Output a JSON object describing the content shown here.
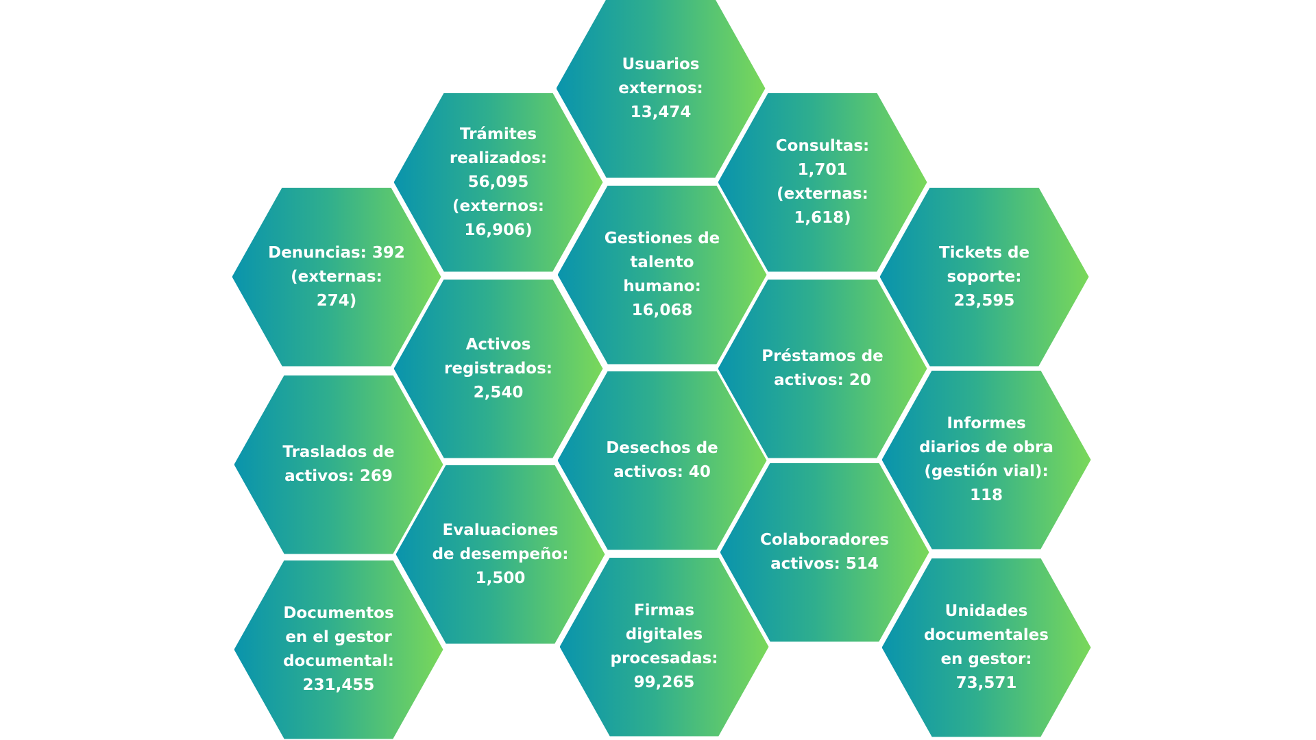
{
  "nodes": [
    {
      "label": "Usuarios externos: 13,474"
    },
    {
      "label": "Trámites realizados: 56,095 (externos: 16,906)"
    },
    {
      "label": "Consultas: 1,701 (externas: 1,618)"
    },
    {
      "label": "Denuncias: 392 (externas: 274)"
    },
    {
      "label": "Gestiones de talento humano: 16,068"
    },
    {
      "label": "Tickets de soporte: 23,595"
    },
    {
      "label": "Activos registrados: 2,540"
    },
    {
      "label": "Préstamos de activos: 20"
    },
    {
      "label": "Traslados de activos: 269"
    },
    {
      "label": "Desechos de activos: 40"
    },
    {
      "label": "Informes diarios de obra (gestión vial): 118"
    },
    {
      "label": "Evaluaciones de desempeño: 1,500"
    },
    {
      "label": "Colaboradores activos: 514"
    },
    {
      "label": "Documentos en el gestor documental: 231,455"
    },
    {
      "label": "Firmas digitales procesadas: 99,265"
    },
    {
      "label": "Unidades documentales en gestor: 73,571"
    }
  ]
}
